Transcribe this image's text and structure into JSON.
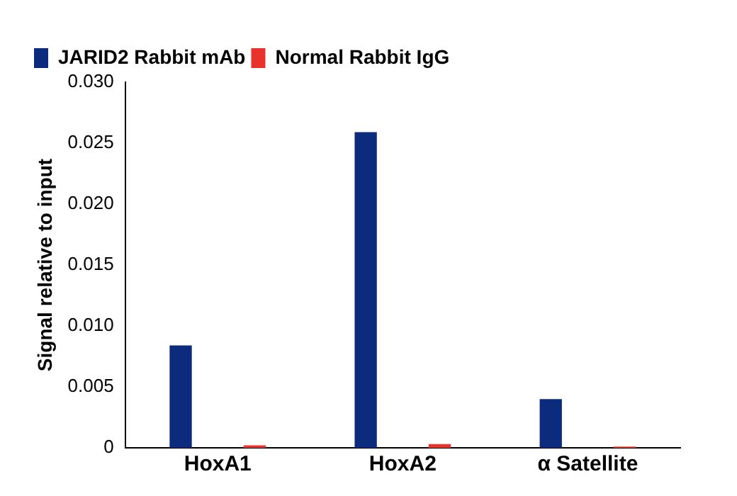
{
  "chart_data": {
    "type": "bar",
    "ylabel": "Signal relative to input",
    "categories": [
      "HoxA1",
      "HoxA2",
      "α Satellite"
    ],
    "series": [
      {
        "name": "JARID2 Rabbit mAb",
        "color": "#0d2b7c",
        "values": [
          0.0084,
          0.0259,
          0.004
        ]
      },
      {
        "name": "Normal Rabbit IgG",
        "color": "#e8322c",
        "values": [
          0.0002,
          0.0003,
          0.0001
        ]
      }
    ],
    "ylim": [
      0,
      0.03
    ],
    "yticks": [
      {
        "value": 0,
        "label": "0"
      },
      {
        "value": 0.005,
        "label": "0.005"
      },
      {
        "value": 0.01,
        "label": "0.010"
      },
      {
        "value": 0.015,
        "label": "0.015"
      },
      {
        "value": 0.02,
        "label": "0.020"
      },
      {
        "value": 0.025,
        "label": "0.025"
      },
      {
        "value": 0.03,
        "label": "0.030"
      }
    ],
    "grid": false,
    "legend": "top left"
  }
}
